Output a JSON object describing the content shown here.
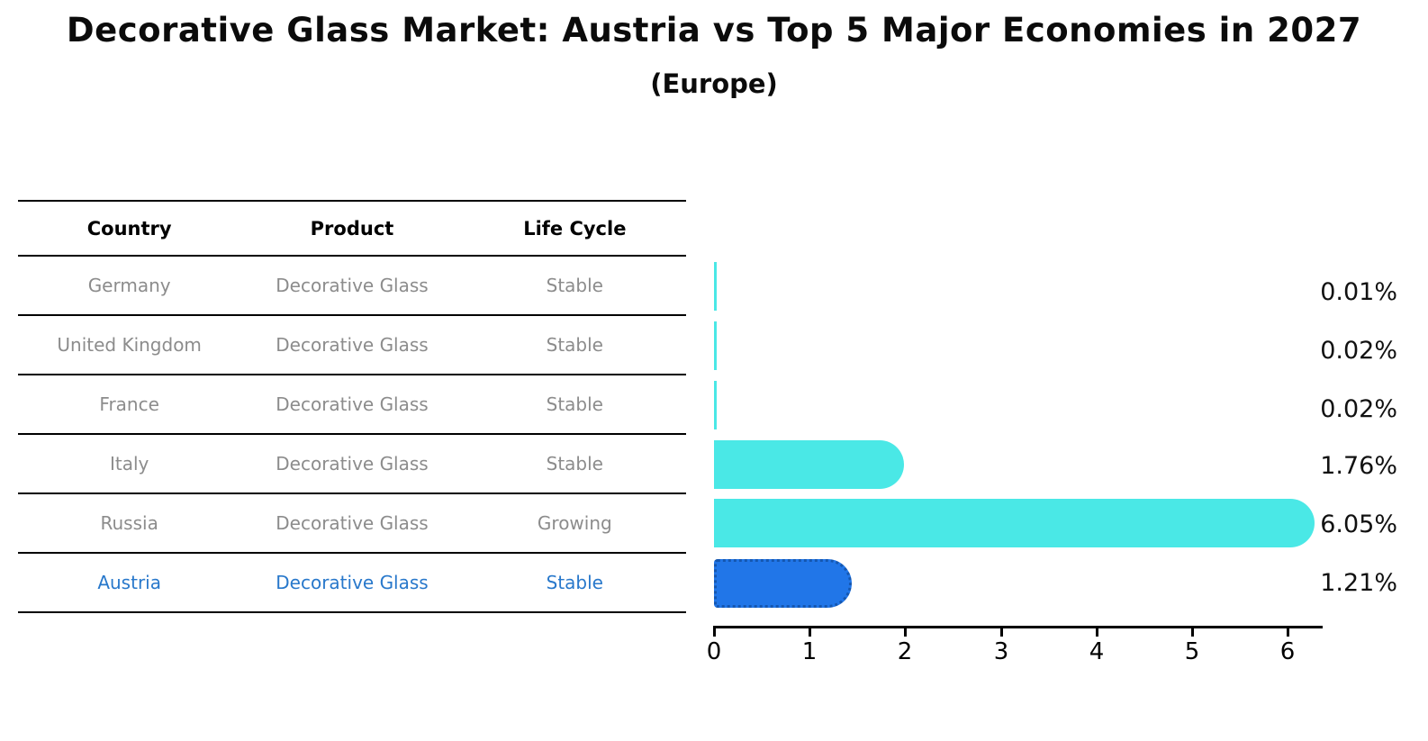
{
  "title": "Decorative Glass Market: Austria vs Top 5 Major Economies in 2027",
  "subtitle": "(Europe)",
  "table": {
    "headers": [
      "Country",
      "Product",
      "Life Cycle"
    ],
    "rows": [
      {
        "country": "Germany",
        "product": "Decorative Glass",
        "life_cycle": "Stable",
        "highlighted": false
      },
      {
        "country": "United Kingdom",
        "product": "Decorative Glass",
        "life_cycle": "Stable",
        "highlighted": false
      },
      {
        "country": "France",
        "product": "Decorative Glass",
        "life_cycle": "Stable",
        "highlighted": false
      },
      {
        "country": "Italy",
        "product": "Decorative Glass",
        "life_cycle": "Stable",
        "highlighted": false
      },
      {
        "country": "Russia",
        "product": "Decorative Glass",
        "life_cycle": "Growing",
        "highlighted": false
      },
      {
        "country": "Austria",
        "product": "Decorative Glass",
        "life_cycle": "Stable",
        "highlighted": true
      }
    ]
  },
  "chart_data": {
    "type": "bar",
    "orientation": "horizontal",
    "title": "Decorative Glass Market: Austria vs Top 5 Major Economies in 2027 (Europe)",
    "categories": [
      "Germany",
      "United Kingdom",
      "France",
      "Italy",
      "Russia",
      "Austria"
    ],
    "values": [
      0.01,
      0.02,
      0.02,
      1.76,
      6.05,
      1.21
    ],
    "value_labels": [
      "0.01%",
      "0.02%",
      "0.02%",
      "1.76%",
      "6.05%",
      "1.21%"
    ],
    "unit": "%",
    "xticks": [
      "0",
      "1",
      "2",
      "3",
      "4",
      "5",
      "6"
    ],
    "xlim": [
      0,
      6.5
    ],
    "grid": false,
    "legend": false,
    "highlighted_category": "Austria"
  },
  "colors": {
    "bar_cyan": "#4ae8e6",
    "bar_blue": "#2176e8",
    "bar_blue_border": "#1557b0",
    "highlight_text": "#2878cb",
    "row_text": "#8c8c8c",
    "axis": "#000000",
    "value_text": "#111111"
  }
}
